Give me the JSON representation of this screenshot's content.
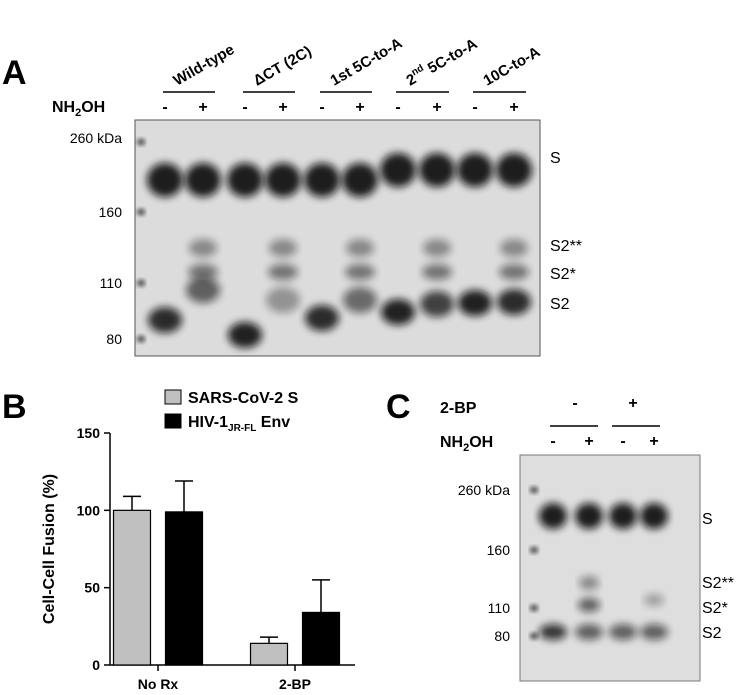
{
  "panel_a": {
    "label": "A",
    "lanes": [
      {
        "text": "Wild-type"
      },
      {
        "text": "ΔCT (2C)"
      },
      {
        "text": "1st 5C-to-A"
      },
      {
        "text": "2",
        "sup": "nd",
        "rest": " 5C-to-A"
      },
      {
        "text": "10C-to-A"
      }
    ],
    "treatment": {
      "a": "NH",
      "sub": "2",
      "b": "OH"
    },
    "signs": [
      "-",
      "+",
      "-",
      "+",
      "-",
      "+",
      "-",
      "+",
      "-",
      "+"
    ],
    "markers": [
      "260 kDa",
      "160",
      "110",
      "80"
    ],
    "bands": [
      "S",
      "S2**",
      "S2*",
      "S2"
    ]
  },
  "chart_data": {
    "type": "bar",
    "label": "B",
    "ylabel": "Cell-Cell Fusion (%)",
    "categories": [
      "No Rx",
      "2-BP"
    ],
    "series": [
      {
        "name": "SARS-CoV-2 S",
        "color": "#c0c0c0",
        "values": [
          100,
          14
        ],
        "errors": [
          9,
          4
        ]
      },
      {
        "name": "HIV-1",
        "name_sub": "JR-FL",
        "name_suffix": " Env",
        "color": "#000000",
        "values": [
          99,
          34
        ],
        "errors": [
          20,
          21
        ]
      }
    ],
    "ylim": [
      0,
      150
    ],
    "yticks": [
      0,
      50,
      100,
      150
    ]
  },
  "panel_c": {
    "label": "C",
    "treatment1": "2-BP",
    "treatment1_signs": [
      "-",
      "+"
    ],
    "treatment2": {
      "a": "NH",
      "sub": "2",
      "b": "OH"
    },
    "signs": [
      "-",
      "+",
      "-",
      "+"
    ],
    "markers": [
      "260 kDa",
      "160",
      "110",
      "80"
    ],
    "bands": [
      "S",
      "S2**",
      "S2*",
      "S2"
    ]
  }
}
